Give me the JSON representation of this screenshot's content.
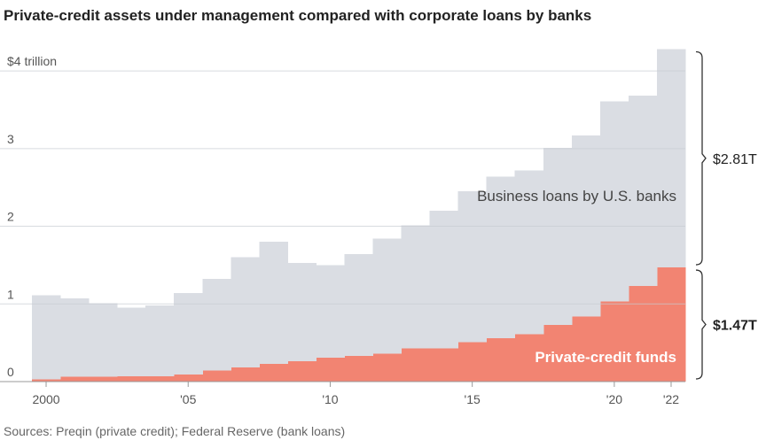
{
  "chart_data": {
    "type": "step-area",
    "stacked": true,
    "title": "Private-credit assets under management compared with corporate loans by banks",
    "source": "Sources: Preqin (private credit); Federal Reserve (bank loans)",
    "x": [
      2000,
      2001,
      2002,
      2003,
      2004,
      2005,
      2006,
      2007,
      2008,
      2009,
      2010,
      2011,
      2012,
      2013,
      2014,
      2015,
      2016,
      2017,
      2018,
      2019,
      2020,
      2021,
      2022
    ],
    "series": [
      {
        "name": "Private-credit funds",
        "color": "#f28472",
        "label_color": "#ffffff",
        "end_label": "$1.47T",
        "values": [
          0.03,
          0.06,
          0.06,
          0.07,
          0.07,
          0.09,
          0.14,
          0.18,
          0.23,
          0.26,
          0.31,
          0.33,
          0.36,
          0.43,
          0.43,
          0.51,
          0.56,
          0.61,
          0.73,
          0.84,
          1.03,
          1.23,
          1.47
        ]
      },
      {
        "name": "Business loans by U.S. banks",
        "color": "#dadde3",
        "label_color": "#444444",
        "end_label": "$2.81T",
        "values": [
          1.08,
          1.01,
          0.95,
          0.88,
          0.91,
          1.05,
          1.18,
          1.42,
          1.57,
          1.27,
          1.19,
          1.31,
          1.48,
          1.58,
          1.77,
          1.94,
          2.08,
          2.11,
          2.28,
          2.33,
          2.58,
          2.45,
          2.81
        ]
      }
    ],
    "xlim": [
      1999.5,
      2022.5
    ],
    "xticks": [
      2000,
      {
        "value": 2005,
        "label": "'05"
      },
      {
        "value": 2010,
        "label": "'10"
      },
      {
        "value": 2015,
        "label": "'15"
      },
      {
        "value": 2020,
        "label": "'20"
      },
      {
        "value": 2022,
        "label": "'22"
      }
    ],
    "ylim": [
      0,
      4.4
    ],
    "yticks": [
      0,
      1,
      2,
      3,
      {
        "value": 4,
        "label": "$4 trillion"
      }
    ],
    "grid": true
  }
}
